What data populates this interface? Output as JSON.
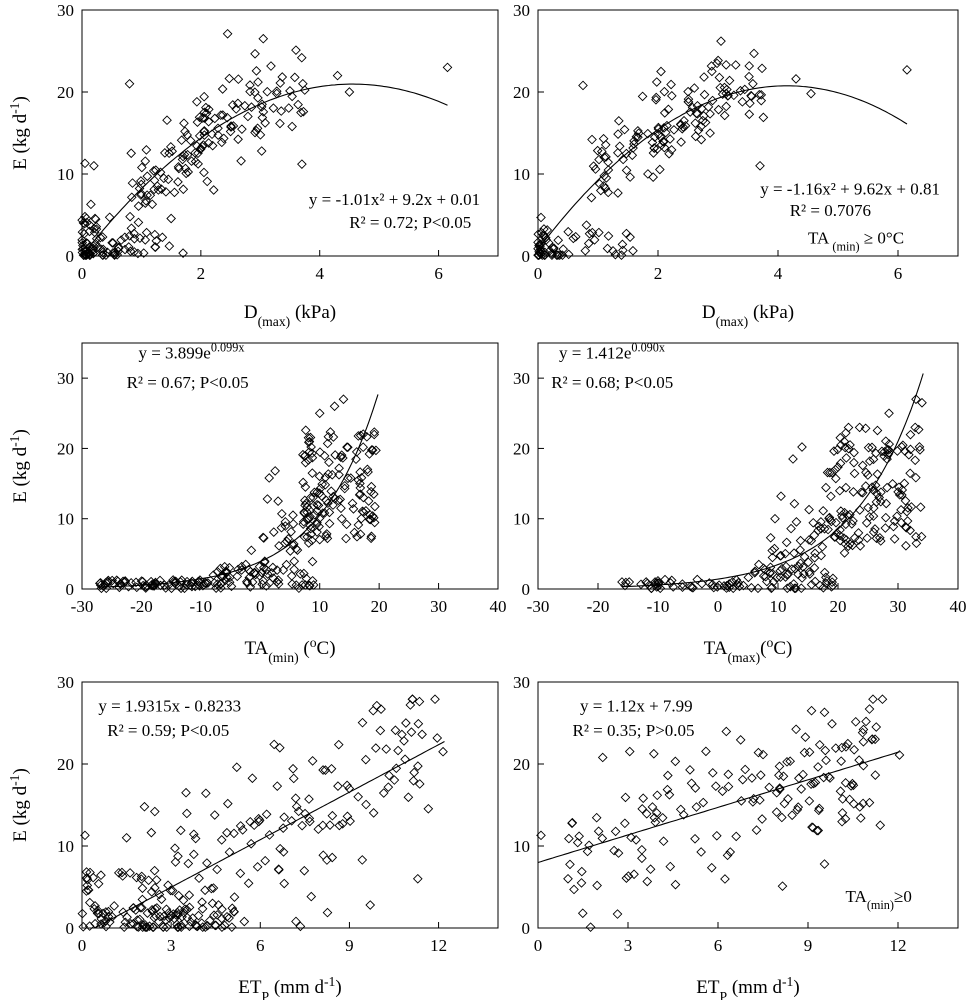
{
  "chart_data": [
    {
      "type": "scatter",
      "xlim": [
        0,
        7
      ],
      "ylim": [
        0,
        30
      ],
      "xticks": [
        0,
        2,
        4,
        6
      ],
      "yticks": [
        0,
        10,
        20,
        30
      ],
      "xlabel": {
        "main": "D",
        "sub": "(max)",
        "tail": " (kPa)"
      },
      "ylabel": {
        "main": "E (kg d",
        "sup": "-1",
        "tail": ")"
      },
      "grid": false,
      "fit": {
        "kind": "poly2",
        "a": -1.01,
        "b": 9.2,
        "c": 0.01,
        "range": [
          0,
          6.15
        ]
      },
      "annotations": [
        {
          "main": "y = -1.01x² + 9.2x + 0.01",
          "x": 6.7,
          "y": 6.2,
          "anchor": "end"
        },
        {
          "main": "R² = 0.72; P<0.05",
          "x": 6.55,
          "y": 3.4,
          "anchor": "end"
        }
      ],
      "point_sets": [
        {
          "kind": "random",
          "n": 150,
          "seed": 11,
          "xr": [
            0.8,
            3.8
          ],
          "fx": "fit",
          "noise": 5.2
        },
        {
          "kind": "cluster",
          "n": 60,
          "seed": 12,
          "xr": [
            0,
            0.55
          ],
          "yr": [
            0,
            5
          ]
        },
        {
          "kind": "random",
          "n": 25,
          "seed": 13,
          "xr": [
            0.5,
            1.8
          ],
          "yr": [
            0,
            3
          ]
        }
      ],
      "points": [
        [
          0.05,
          11.3
        ],
        [
          0.2,
          11.0
        ],
        [
          0.8,
          21.0
        ],
        [
          2.45,
          27.1
        ],
        [
          3.05,
          26.5
        ],
        [
          3.6,
          25.1
        ],
        [
          4.3,
          22.0
        ],
        [
          4.5,
          20.0
        ],
        [
          3.7,
          11.2
        ],
        [
          6.15,
          23.0
        ],
        [
          0.05,
          4.8
        ],
        [
          0.15,
          6.3
        ]
      ]
    },
    {
      "type": "scatter",
      "xlim": [
        0,
        7
      ],
      "ylim": [
        0,
        30
      ],
      "xticks": [
        0,
        2,
        4,
        6
      ],
      "yticks": [
        0,
        10,
        20,
        30
      ],
      "xlabel": {
        "main": "D",
        "sub": "(max)",
        "tail": " (kPa)"
      },
      "grid": false,
      "fit": {
        "kind": "poly2",
        "a": -1.16,
        "b": 9.62,
        "c": 0.81,
        "range": [
          0,
          6.15
        ]
      },
      "annotations": [
        {
          "main": "y = -1.16x² + 9.62x + 0.81",
          "x": 6.7,
          "y": 7.5,
          "anchor": "end"
        },
        {
          "main": "R² = 0.7076",
          "x": 5.55,
          "y": 4.9,
          "anchor": "end"
        },
        {
          "main": "TA",
          "sub": " (min)",
          "tail": " ≥ 0°C",
          "x": 4.5,
          "y": 1.5,
          "anchor": "start"
        }
      ],
      "point_sets": [
        {
          "kind": "random",
          "n": 140,
          "seed": 21,
          "xr": [
            0.8,
            3.8
          ],
          "fx": "fit",
          "noise": 5.0
        },
        {
          "kind": "cluster",
          "n": 40,
          "seed": 22,
          "xr": [
            0,
            0.5
          ],
          "yr": [
            0,
            4
          ]
        },
        {
          "kind": "random",
          "n": 18,
          "seed": 23,
          "xr": [
            0.4,
            1.6
          ],
          "yr": [
            0,
            3
          ]
        }
      ],
      "points": [
        [
          3.05,
          26.2
        ],
        [
          3.6,
          24.7
        ],
        [
          4.3,
          21.6
        ],
        [
          4.55,
          19.8
        ],
        [
          3.7,
          11.0
        ],
        [
          6.15,
          22.7
        ],
        [
          0.75,
          20.8
        ],
        [
          2.05,
          22.5
        ],
        [
          0.05,
          4.7
        ],
        [
          0.9,
          14.2
        ]
      ]
    },
    {
      "type": "scatter",
      "xlim": [
        -30,
        40
      ],
      "ylim": [
        0,
        35
      ],
      "xticks": [
        -30,
        -20,
        -10,
        0,
        10,
        20,
        30,
        40
      ],
      "yticks": [
        0,
        10,
        20,
        30
      ],
      "xlabel": {
        "main": "TA",
        "sub": "(min)",
        "tail": "  (",
        "sup": "o",
        "tail2": "C)"
      },
      "ylabel": {
        "main": "E (kg d",
        "sup": "-1",
        "tail": ")"
      },
      "grid": false,
      "fit": {
        "kind": "exp",
        "a": 3.899,
        "b": 0.099,
        "range": [
          -27,
          19.8
        ]
      },
      "annotations": [
        {
          "main": "y = 3.899e",
          "sup": "0.099x",
          "x": -20.5,
          "y": 32.8,
          "anchor": "start"
        },
        {
          "main": "R² = 0.67; P<0.05",
          "x": -22.5,
          "y": 28.6,
          "anchor": "start"
        }
      ],
      "point_sets": [
        {
          "kind": "random",
          "n": 70,
          "seed": 31,
          "xr": [
            -27,
            -8
          ],
          "yr": [
            0,
            1.3
          ]
        },
        {
          "kind": "random",
          "n": 50,
          "seed": 32,
          "xr": [
            -8,
            3
          ],
          "yr": [
            0,
            3.5
          ]
        },
        {
          "kind": "random",
          "n": 40,
          "seed": 33,
          "xr": [
            0,
            10
          ],
          "fx": "fit",
          "noise": 4.0
        },
        {
          "kind": "random",
          "n": 130,
          "seed": 34,
          "xr": [
            7,
            19.5
          ],
          "yr": [
            7,
            23
          ]
        },
        {
          "kind": "random",
          "n": 15,
          "seed": 35,
          "xr": [
            3,
            9
          ],
          "yr": [
            0,
            2.5
          ]
        }
      ],
      "points": [
        [
          -27,
          0.8
        ],
        [
          -26,
          0.9
        ],
        [
          1.2,
          12.8
        ],
        [
          1.5,
          15.8
        ],
        [
          2.5,
          16.8
        ],
        [
          3.0,
          12.5
        ],
        [
          14,
          27.0
        ],
        [
          12.5,
          26.0
        ],
        [
          10,
          25.0
        ],
        [
          5.5,
          10.5
        ],
        [
          -1.5,
          5.5
        ]
      ]
    },
    {
      "type": "scatter",
      "xlim": [
        -30,
        40
      ],
      "ylim": [
        0,
        35
      ],
      "xticks": [
        -30,
        -20,
        -10,
        0,
        10,
        20,
        30,
        40
      ],
      "yticks": [
        0,
        10,
        20,
        30
      ],
      "xlabel": {
        "main": "TA",
        "sub": "(max)",
        "tail": "(",
        "sup": "o",
        "tail2": "C)"
      },
      "grid": false,
      "fit": {
        "kind": "exp",
        "a": 1.412,
        "b": 0.09,
        "range": [
          -16,
          34.2
        ]
      },
      "annotations": [
        {
          "main": "y = 1.412e",
          "sup": "0.090x",
          "x": -26.5,
          "y": 32.8,
          "anchor": "start"
        },
        {
          "main": "R² = 0.68; P<0.05",
          "x": -27.8,
          "y": 28.6,
          "anchor": "start"
        }
      ],
      "point_sets": [
        {
          "kind": "random",
          "n": 45,
          "seed": 41,
          "xr": [
            -16,
            5
          ],
          "yr": [
            0,
            1.4
          ]
        },
        {
          "kind": "random",
          "n": 40,
          "seed": 42,
          "xr": [
            5,
            20
          ],
          "yr": [
            0,
            3.5
          ]
        },
        {
          "kind": "random",
          "n": 60,
          "seed": 43,
          "xr": [
            8,
            22
          ],
          "fx": "fit",
          "noise": 6.0
        },
        {
          "kind": "random",
          "n": 130,
          "seed": 44,
          "xr": [
            18,
            34
          ],
          "yr": [
            6,
            23
          ]
        }
      ],
      "points": [
        [
          -16,
          1.0
        ],
        [
          -15.5,
          0.5
        ],
        [
          9.5,
          10.0
        ],
        [
          10.5,
          13.2
        ],
        [
          12.5,
          18.5
        ],
        [
          14,
          20.2
        ],
        [
          34,
          26.5
        ],
        [
          33,
          27.0
        ],
        [
          28.5,
          25.0
        ],
        [
          22,
          20.5
        ],
        [
          17,
          0.5
        ],
        [
          18,
          0.8
        ]
      ]
    },
    {
      "type": "scatter",
      "xlim": [
        0,
        14
      ],
      "ylim": [
        0,
        30
      ],
      "xticks": [
        0,
        3,
        6,
        9,
        12
      ],
      "yticks": [
        0,
        10,
        20,
        30
      ],
      "xlabel": {
        "main": "ET",
        "sub": "P",
        "tail": " (mm d",
        "sup": "-1",
        "tail2": ")"
      },
      "ylabel": {
        "main": "E (kg d",
        "sup": "-1",
        "tail": ")"
      },
      "grid": false,
      "fit": {
        "kind": "linear",
        "m": 1.9315,
        "b": -0.8233,
        "range": [
          0.43,
          12.2
        ]
      },
      "annotations": [
        {
          "main": "y = 1.9315x - 0.8233",
          "x": 0.55,
          "y": 26.4,
          "anchor": "start"
        },
        {
          "main": "R² = 0.59; P<0.05",
          "x": 0.85,
          "y": 23.4,
          "anchor": "start"
        }
      ],
      "point_sets": [
        {
          "kind": "random",
          "n": 90,
          "seed": 51,
          "xr": [
            0,
            5.5
          ],
          "yr": [
            0,
            2.5
          ]
        },
        {
          "kind": "random",
          "n": 150,
          "seed": 52,
          "xr": [
            2,
            12
          ],
          "fx": "fit",
          "noise": 11.0
        },
        {
          "kind": "random",
          "n": 25,
          "seed": 53,
          "xr": [
            0,
            2.5
          ],
          "yr": [
            2,
            7
          ]
        }
      ],
      "points": [
        [
          0.1,
          11.3
        ],
        [
          0.15,
          4.5
        ],
        [
          11.05,
          27.2
        ],
        [
          9.8,
          26.5
        ],
        [
          10.9,
          25.0
        ],
        [
          12.15,
          21.5
        ],
        [
          9.7,
          2.8
        ],
        [
          11.3,
          6.0
        ],
        [
          7.35,
          0.2
        ],
        [
          7.2,
          0.8
        ],
        [
          1.5,
          11.0
        ],
        [
          2.45,
          14.2
        ],
        [
          3.5,
          16.5
        ]
      ]
    },
    {
      "type": "scatter",
      "xlim": [
        0,
        14
      ],
      "ylim": [
        0,
        30
      ],
      "xticks": [
        0,
        3,
        6,
        9,
        12
      ],
      "yticks": [
        0,
        10,
        20,
        30
      ],
      "xlabel": {
        "main": "ET",
        "sub": "P",
        "tail": " (mm d",
        "sup": "-1",
        "tail2": ")"
      },
      "grid": false,
      "fit": {
        "kind": "linear",
        "m": 1.12,
        "b": 7.99,
        "range": [
          0,
          12.05
        ]
      },
      "annotations": [
        {
          "main": "y = 1.12x + 7.99",
          "x": 1.4,
          "y": 26.4,
          "anchor": "start"
        },
        {
          "main": "R² = 0.35; P>0.05",
          "x": 1.15,
          "y": 23.4,
          "anchor": "start"
        },
        {
          "main": "TA",
          "sub": "(min)",
          "tail": "≥0",
          "x": 10.25,
          "y": 3.2,
          "anchor": "start"
        }
      ],
      "point_sets": [
        {
          "kind": "random",
          "n": 160,
          "seed": 61,
          "xr": [
            1,
            11.5
          ],
          "fx": "fit",
          "noise": 9.0
        }
      ],
      "points": [
        [
          0.1,
          11.3
        ],
        [
          1.0,
          6.0
        ],
        [
          1.2,
          4.7
        ],
        [
          1.45,
          5.5
        ],
        [
          2.65,
          1.7
        ],
        [
          9.55,
          26.3
        ],
        [
          11.05,
          26.7
        ],
        [
          9.8,
          24.9
        ],
        [
          12.05,
          21.1
        ],
        [
          8.15,
          5.1
        ],
        [
          9.55,
          7.8
        ]
      ]
    }
  ]
}
